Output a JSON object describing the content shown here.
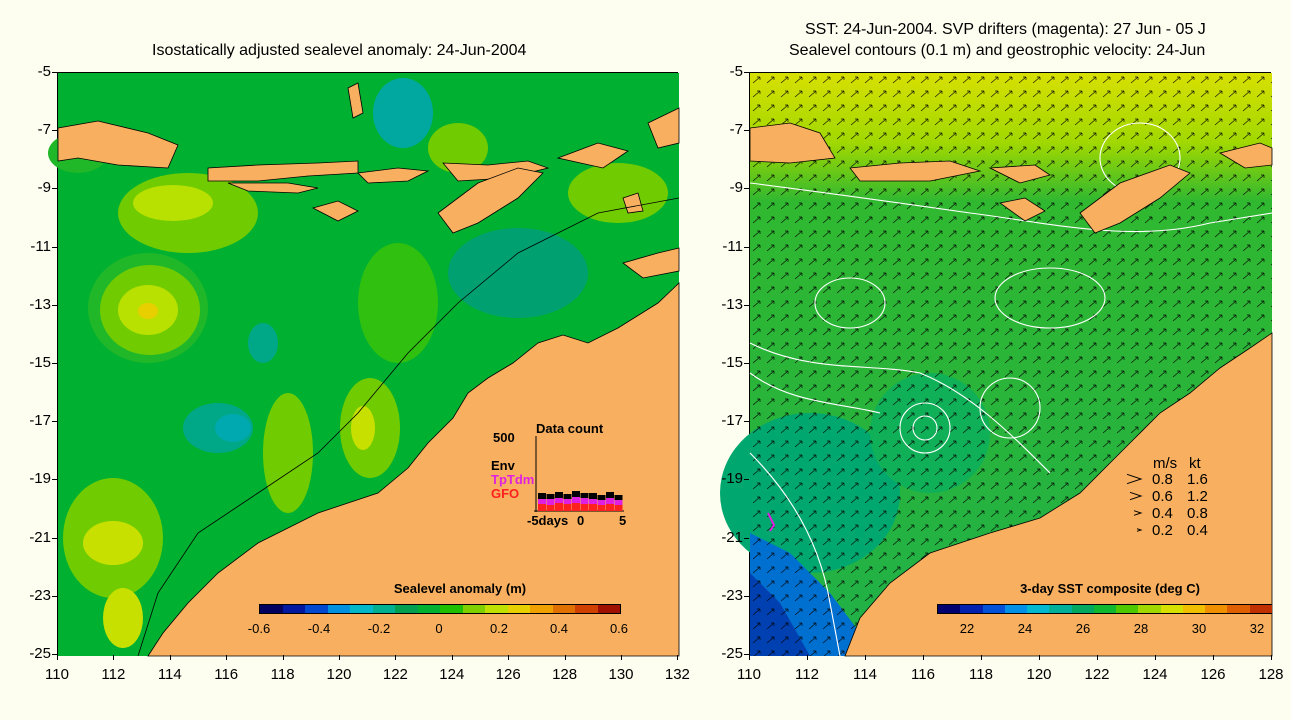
{
  "left_panel": {
    "title": "Isostatically adjusted sealevel anomaly: 24-Jun-2004",
    "y_ticks": [
      "-5",
      "-7",
      "-9",
      "-11",
      "-13",
      "-15",
      "-17",
      "-19",
      "-21",
      "-23",
      "-25"
    ],
    "x_ticks": [
      "110",
      "112",
      "114",
      "116",
      "118",
      "120",
      "122",
      "124",
      "126",
      "128",
      "130",
      "132"
    ],
    "colorbar": {
      "title": "Sealevel anomaly (m)",
      "labels": [
        "-0.6",
        "-0.4",
        "-0.2",
        "0",
        "0.2",
        "0.4",
        "0.6"
      ],
      "colors": [
        "#000060",
        "#0018a0",
        "#0048d0",
        "#0090e0",
        "#00b8c8",
        "#00b090",
        "#00a050",
        "#00b030",
        "#20c000",
        "#80d000",
        "#c0e000",
        "#e8d000",
        "#f0a000",
        "#e07000",
        "#d04000",
        "#a01000"
      ]
    },
    "data_count": {
      "title": "Data count",
      "scale_label": "500",
      "sources": [
        {
          "name": "Env",
          "color": "#000000"
        },
        {
          "name": "TpTdm",
          "color": "#e020e0"
        },
        {
          "name": "GFO",
          "color": "#ff2020"
        }
      ],
      "x_labels": [
        "-5days",
        "0",
        "5"
      ]
    }
  },
  "right_panel": {
    "title_line1": "SST: 24-Jun-2004. SVP drifters (magenta): 27 Jun - 05 J",
    "title_line2": "Sealevel contours (0.1 m) and geostrophic velocity: 24-Jun",
    "y_ticks": [
      "-5",
      "-7",
      "-9",
      "-11",
      "-13",
      "-15",
      "-17",
      "-19",
      "-21",
      "-23",
      "-25"
    ],
    "x_ticks": [
      "110",
      "112",
      "114",
      "116",
      "118",
      "120",
      "122",
      "124",
      "126",
      "128"
    ],
    "colorbar": {
      "title": "3-day SST composite (deg C)",
      "labels": [
        "22",
        "24",
        "26",
        "28",
        "30",
        "32"
      ],
      "colors": [
        "#000070",
        "#0020b0",
        "#0050d8",
        "#0090e8",
        "#00b8d0",
        "#00b098",
        "#00a860",
        "#10b830",
        "#50c800",
        "#a0d800",
        "#d8e000",
        "#f0c000",
        "#f09000",
        "#e06000",
        "#c03000"
      ]
    },
    "velocity_legend": {
      "header_ms": "m/s",
      "header_kt": "kt",
      "rows": [
        {
          "ms": "0.8",
          "kt": "1.6"
        },
        {
          "ms": "0.6",
          "kt": "1.2"
        },
        {
          "ms": "0.4",
          "kt": "0.8"
        },
        {
          "ms": "0.2",
          "kt": "0.4"
        }
      ]
    }
  },
  "colors": {
    "land": "#f8b060",
    "ocean_base": "#00b030",
    "background": "#fdfdf0"
  }
}
